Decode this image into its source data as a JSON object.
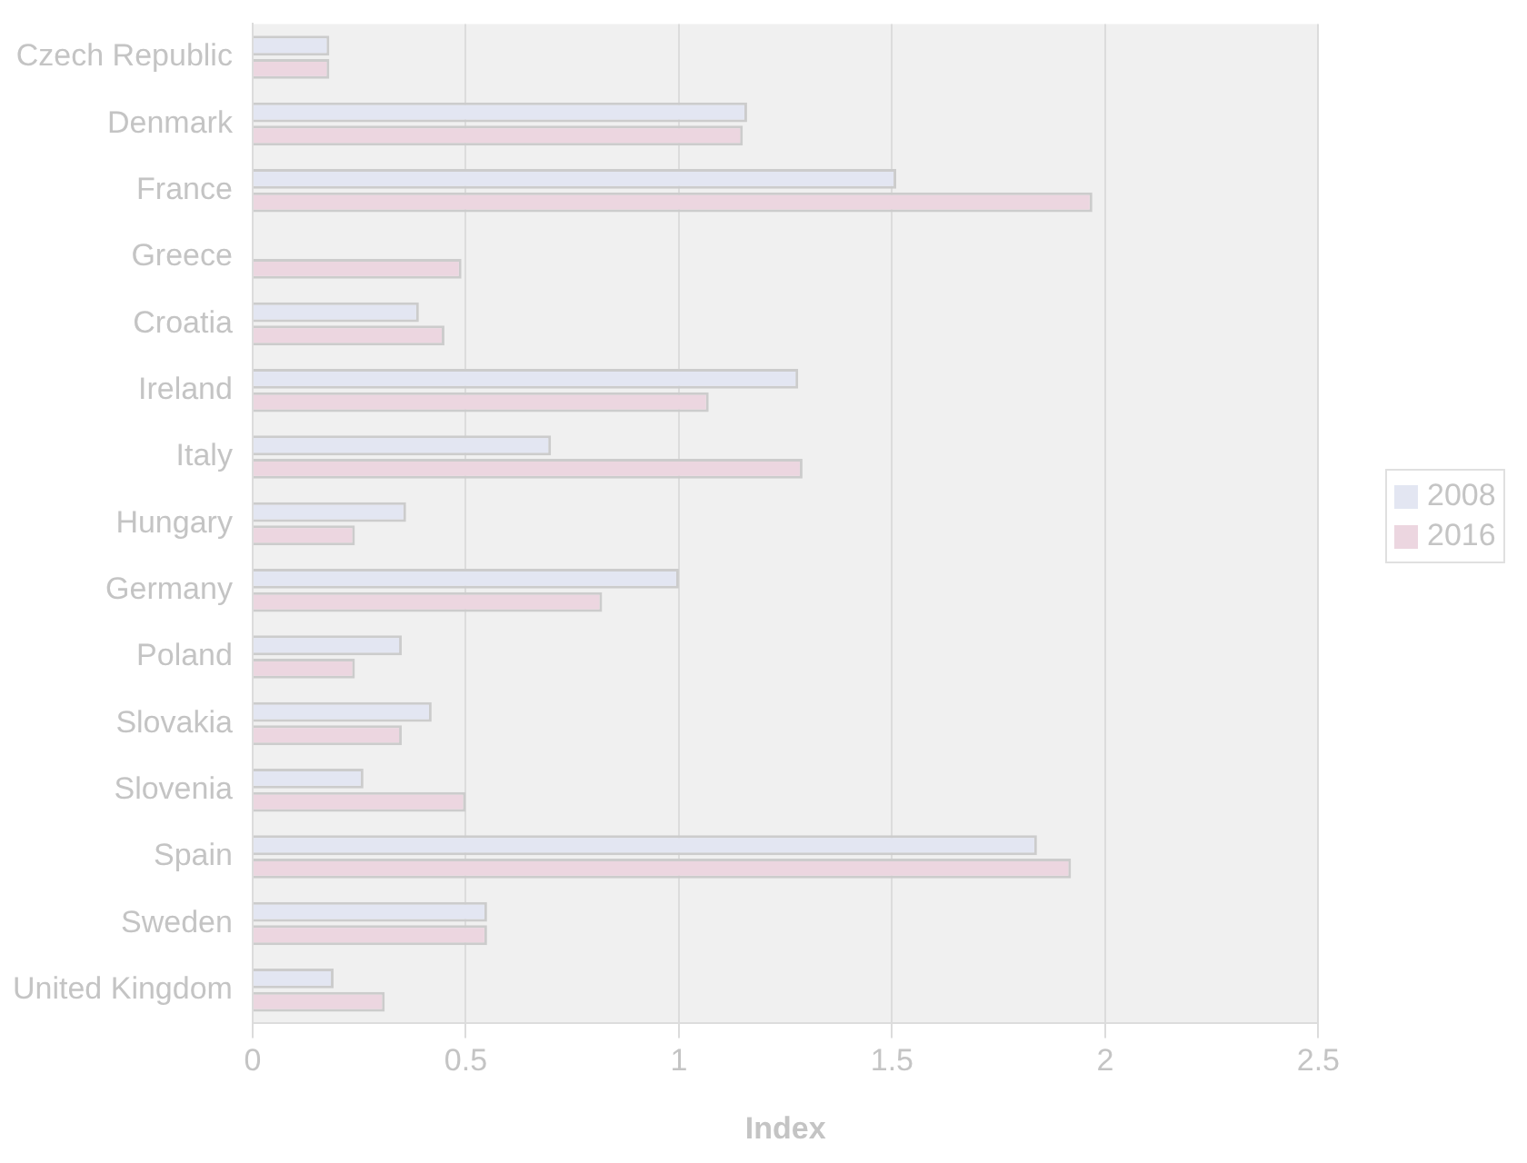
{
  "chart_data": {
    "type": "bar",
    "orientation": "horizontal",
    "xlabel": "Index",
    "categories": [
      "Czech Republic",
      "Denmark",
      "France",
      "Greece",
      "Croatia",
      "Ireland",
      "Italy",
      "Hungary",
      "Germany",
      "Poland",
      "Slovakia",
      "Slovenia",
      "Spain",
      "Sweden",
      "United Kingdom"
    ],
    "series": [
      {
        "name": "2008",
        "color": "#e3e6f2",
        "values": [
          0.18,
          1.16,
          1.51,
          null,
          0.39,
          1.28,
          0.7,
          0.36,
          1.0,
          0.35,
          0.42,
          0.26,
          1.84,
          0.55,
          0.19
        ]
      },
      {
        "name": "2016",
        "color": "#ecd6e0",
        "values": [
          0.18,
          1.15,
          1.97,
          0.49,
          0.45,
          1.07,
          1.29,
          0.24,
          0.82,
          0.24,
          0.35,
          0.5,
          1.92,
          0.55,
          0.31
        ]
      }
    ],
    "xlim": [
      0,
      2.5
    ],
    "xticks": [
      0,
      0.5,
      1,
      1.5,
      2,
      2.5
    ],
    "grid": "x",
    "legend": "right"
  }
}
